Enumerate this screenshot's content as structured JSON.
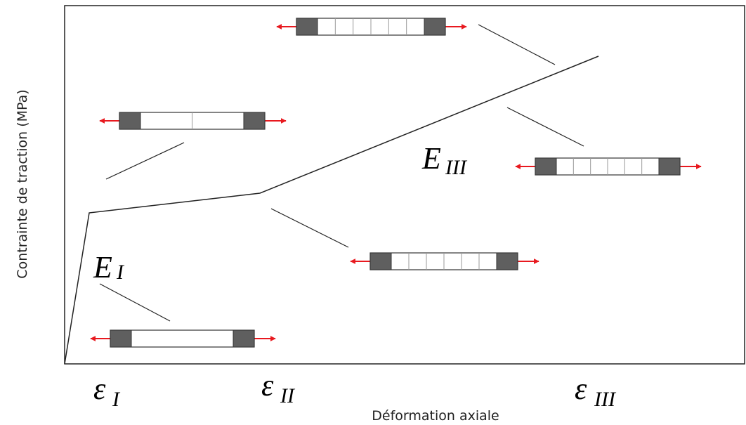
{
  "axes": {
    "y_label": "Contrainte de traction (MPa)",
    "x_label": "Déformation axiale"
  },
  "strain_labels": [
    {
      "symbol": "ε",
      "subscript": "I"
    },
    {
      "symbol": "ε",
      "subscript": "II"
    },
    {
      "symbol": "ε",
      "subscript": "III"
    }
  ],
  "modulus_labels": [
    {
      "symbol": "E",
      "subscript": "I"
    },
    {
      "symbol": "E",
      "subscript": "III"
    }
  ]
}
